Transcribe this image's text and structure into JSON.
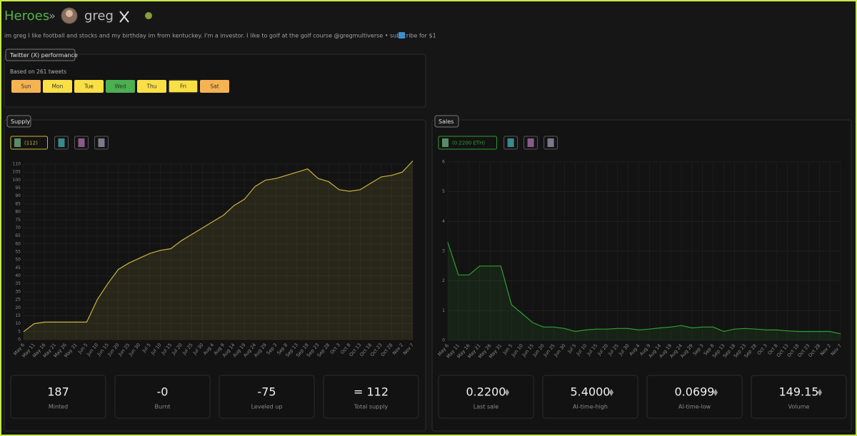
{
  "header": {
    "site": "Heroes",
    "separator": "»",
    "name": "greg"
  },
  "bio": "im greg I like football and stocks and my birthday im from kentuckey. I'm a investor. I like to golf at the golf course @gregmultiverse • subscribe for $1",
  "twitter": {
    "title": "Twitter (X) performance",
    "note": "Based on 261 tweets",
    "days": [
      {
        "label": "Sun",
        "color": "#f6b352"
      },
      {
        "label": "Mon",
        "color": "#fbe045"
      },
      {
        "label": "Tue",
        "color": "#fbe045"
      },
      {
        "label": "Wed",
        "color": "#4caf50"
      },
      {
        "label": "Thu",
        "color": "#fbe045"
      },
      {
        "label": "Fri",
        "color": "#fbe045"
      },
      {
        "label": "Sat",
        "color": "#f6b352"
      }
    ]
  },
  "chart_data": [
    {
      "type": "line",
      "title": "Supply",
      "categories": [
        "May 6",
        "May 11",
        "May 16",
        "May 21",
        "May 26",
        "May 31",
        "Jun 5",
        "Jun 10",
        "Jun 15",
        "Jun 20",
        "Jun 25",
        "Jun 30",
        "Jul 5",
        "Jul 10",
        "Jul 15",
        "Jul 20",
        "Jul 25",
        "Jul 30",
        "Aug 4",
        "Aug 9",
        "Aug 14",
        "Aug 19",
        "Aug 24",
        "Aug 29",
        "Sep 3",
        "Sep 8",
        "Sep 13",
        "Sep 18",
        "Sep 23",
        "Sep 28",
        "Oct 3",
        "Oct 8",
        "Oct 13",
        "Oct 18",
        "Oct 23",
        "Oct 28",
        "Nov 2",
        "Nov 7"
      ],
      "series": [
        {
          "name": "(112)",
          "color": "#c9b43e",
          "values": [
            5,
            10,
            11,
            11,
            11,
            11,
            11,
            25,
            35,
            44,
            48,
            51,
            54,
            56,
            57,
            62,
            66,
            70,
            74,
            78,
            84,
            88,
            96,
            100,
            101,
            103,
            105,
            107,
            101,
            99,
            94,
            93,
            94,
            98,
            102,
            103,
            105,
            112
          ]
        }
      ],
      "ylim": [
        0,
        110
      ],
      "yticks": [
        0,
        5,
        10,
        15,
        20,
        25,
        30,
        35,
        40,
        45,
        50,
        55,
        60,
        65,
        70,
        75,
        80,
        85,
        90,
        95,
        100,
        105,
        110
      ],
      "grid": true
    },
    {
      "type": "line",
      "title": "Sales",
      "categories": [
        "May 6",
        "May 11",
        "May 16",
        "May 21",
        "May 26",
        "May 31",
        "Jun 5",
        "Jun 10",
        "Jun 15",
        "Jun 20",
        "Jun 25",
        "Jun 30",
        "Jul 5",
        "Jul 10",
        "Jul 15",
        "Jul 20",
        "Jul 25",
        "Jul 30",
        "Aug 4",
        "Aug 9",
        "Aug 14",
        "Aug 19",
        "Aug 24",
        "Aug 29",
        "Sep 3",
        "Sep 8",
        "Sep 13",
        "Sep 18",
        "Sep 23",
        "Sep 28",
        "Oct 3",
        "Oct 8",
        "Oct 13",
        "Oct 18",
        "Oct 23",
        "Oct 28",
        "Nov 2",
        "Nov 7"
      ],
      "series": [
        {
          "name": "(0.2200 ETH)",
          "color": "#2f9e2f",
          "values": [
            3.3,
            2.2,
            2.2,
            2.5,
            2.5,
            2.5,
            1.2,
            0.9,
            0.6,
            0.45,
            0.45,
            0.4,
            0.3,
            0.35,
            0.38,
            0.38,
            0.4,
            0.4,
            0.35,
            0.38,
            0.42,
            0.45,
            0.5,
            0.42,
            0.45,
            0.45,
            0.3,
            0.38,
            0.4,
            0.38,
            0.35,
            0.35,
            0.32,
            0.3,
            0.3,
            0.3,
            0.3,
            0.22
          ]
        }
      ],
      "ylim": [
        0,
        6
      ],
      "yticks": [
        0,
        1,
        2,
        3,
        4,
        5,
        6
      ],
      "grid": true
    }
  ],
  "supply_stats": [
    {
      "value": "187",
      "label": "Minted"
    },
    {
      "value": "-0",
      "label": "Burnt"
    },
    {
      "value": "-75",
      "label": "Leveled up"
    },
    {
      "value": "= 112",
      "label": "Total supply"
    }
  ],
  "sales_stats": [
    {
      "value": "0.2200",
      "label": "Last sale"
    },
    {
      "value": "5.4000",
      "label": "Al-time-high"
    },
    {
      "value": "0.0699",
      "label": "Al-time-low"
    },
    {
      "value": "149.15",
      "label": "Volume"
    }
  ]
}
